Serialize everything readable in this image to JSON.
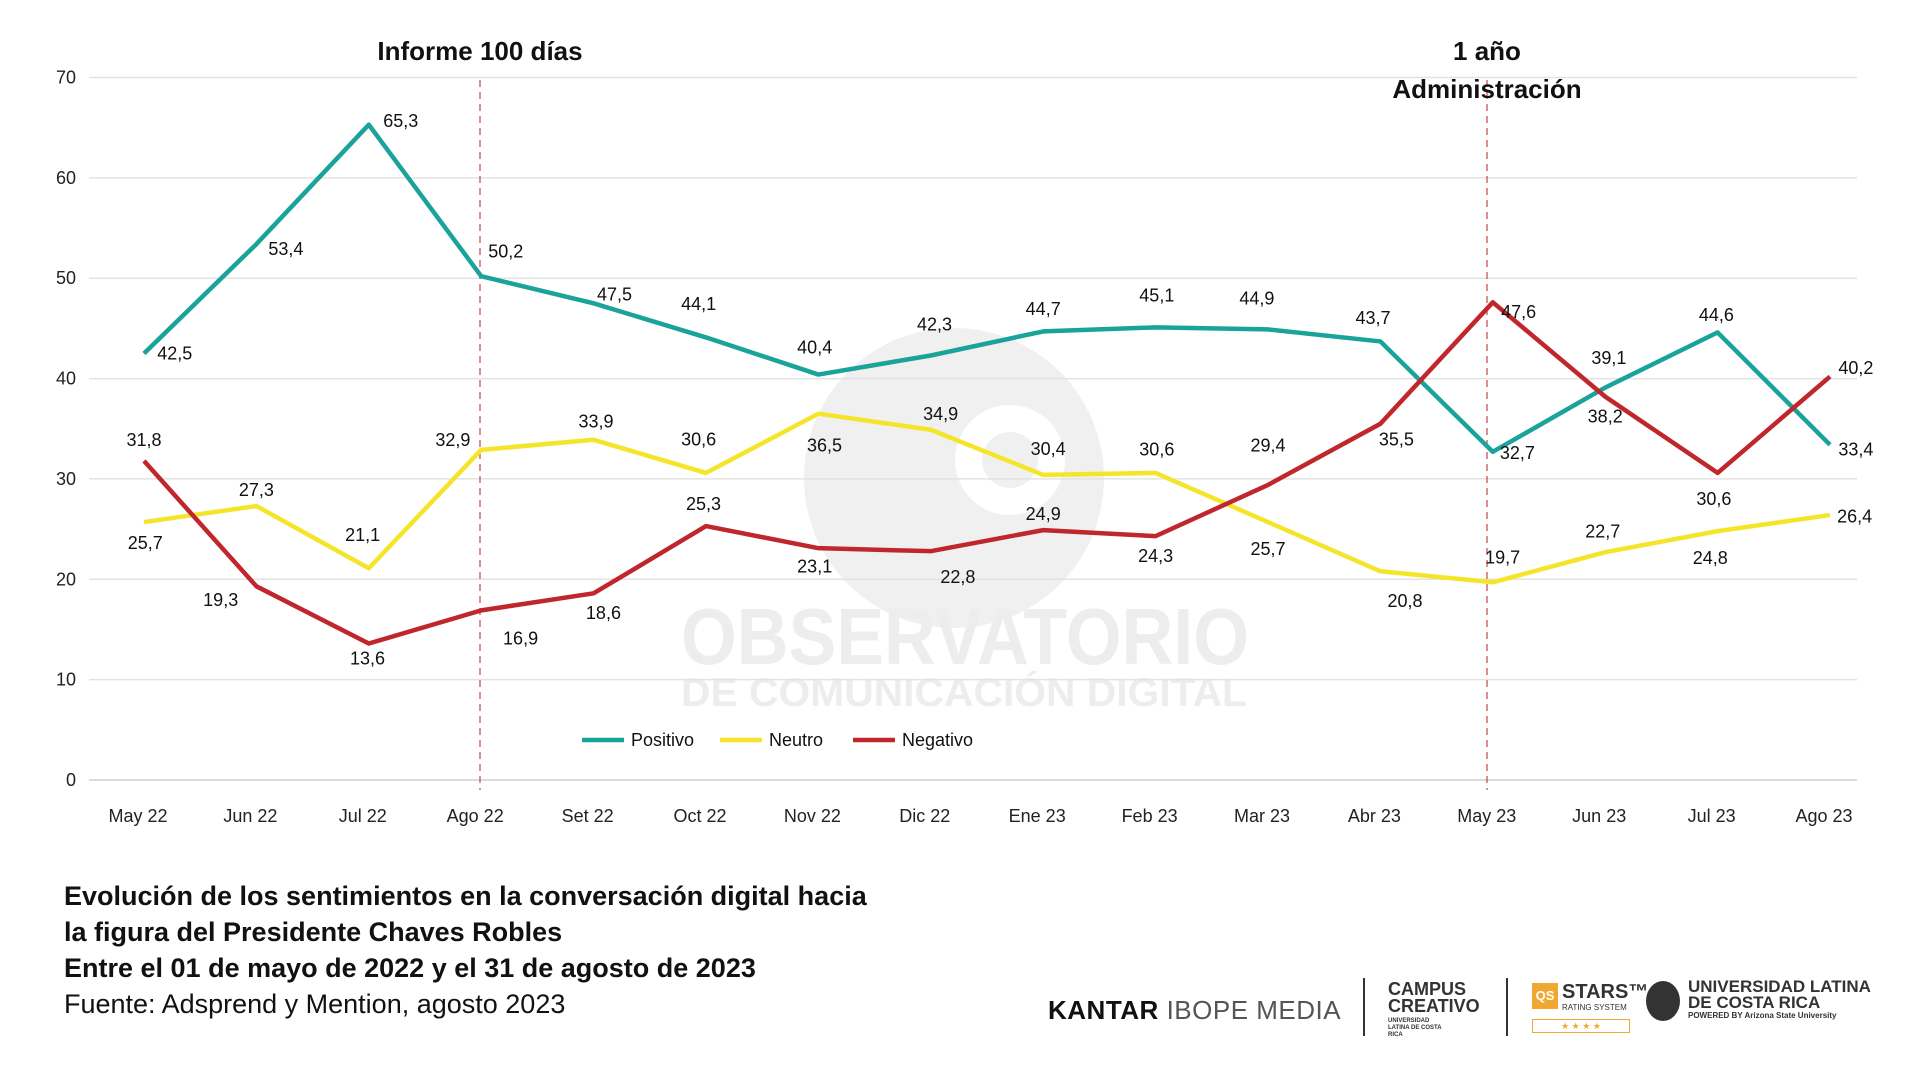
{
  "chart_data": {
    "type": "line",
    "categories": [
      "May 22",
      "Jun 22",
      "Jul 22",
      "Ago 22",
      "Set 22",
      "Oct 22",
      "Nov 22",
      "Dic 22",
      "Ene 23",
      "Feb 23",
      "Mar 23",
      "Abr 23",
      "May 23",
      "Jun 23",
      "Jul 23",
      "Ago 23"
    ],
    "ylim": [
      0,
      70
    ],
    "yticks": [
      0,
      10,
      20,
      30,
      40,
      50,
      60,
      70
    ],
    "grid": true,
    "legend_position": "bottom-left",
    "series": [
      {
        "name": "Positivo",
        "color": "#1aa39a",
        "values": [
          42.5,
          53.4,
          65.3,
          50.2,
          47.5,
          44.1,
          40.4,
          42.3,
          44.7,
          45.1,
          44.9,
          43.7,
          32.7,
          39.1,
          44.6,
          33.4
        ],
        "labels": [
          "42,5",
          "53,4",
          "65,3",
          "50,2",
          "47,5",
          "44,1",
          "40,4",
          "42,3",
          "44,7",
          "45,1",
          "44,9",
          "43,7",
          "32,7",
          "39,1",
          "44,6",
          "33,4"
        ]
      },
      {
        "name": "Neutro",
        "color": "#f5e52a",
        "values": [
          25.7,
          27.3,
          21.1,
          32.9,
          33.9,
          30.6,
          36.5,
          34.9,
          30.4,
          30.6,
          25.7,
          20.8,
          19.7,
          22.7,
          24.8,
          26.4
        ],
        "labels": [
          "25,7",
          "27,3",
          "21,1",
          "32,9",
          "33,9",
          "30,6",
          "36,5",
          "34,9",
          "30,4",
          "30,6",
          "25,7",
          "20,8",
          "19,7",
          "22,7",
          "24,8",
          "26,4"
        ]
      },
      {
        "name": "Negativo",
        "color": "#c0272d",
        "values": [
          31.8,
          19.3,
          13.6,
          16.9,
          18.6,
          25.3,
          23.1,
          22.8,
          24.9,
          24.3,
          29.4,
          35.5,
          47.6,
          38.2,
          30.6,
          40.2
        ],
        "labels": [
          "31,8",
          "19,3",
          "13,6",
          "16,9",
          "18,6",
          "25,3",
          "23,1",
          "22,8",
          "24,9",
          "24,3",
          "29,4",
          "35,5",
          "47,6",
          "38,2",
          "30,6",
          "40,2"
        ]
      }
    ],
    "annotations": [
      {
        "category": "Ago 22",
        "lines": [
          "Informe 100 días"
        ]
      },
      {
        "category": "May 23",
        "lines": [
          "1 año",
          "Administración"
        ]
      }
    ]
  },
  "watermark": {
    "line1": "OBSERVATORIO",
    "line2": "DE COMUNICACIÓN DIGITAL"
  },
  "caption": {
    "line1": "Evolución de los sentimientos en la conversación digital hacia",
    "line2": "la figura del Presidente Chaves Robles",
    "line3": "Entre el 01 de mayo de 2022 y el 31 de agosto de 2023",
    "source": "Fuente: Adsprend y Mention,  agosto 2023"
  },
  "logos": {
    "kantar_bold": "KANTAR",
    "kantar_rest": "IBOPE MEDIA",
    "campus": "CAMPUS",
    "campus2": "CREATIVO",
    "campus_sub": "UNIVERSIDAD LATINA DE COSTA RICA",
    "qs": "QS",
    "stars": "STARS™",
    "stars_sub": "RATING SYSTEM",
    "star_marks": "★ ★ ★ ★",
    "ulatina1": "UNIVERSIDAD LATINA",
    "ulatina2": "DE COSTA RICA",
    "ulatina_sub": "POWERED BY Arizona State University"
  }
}
